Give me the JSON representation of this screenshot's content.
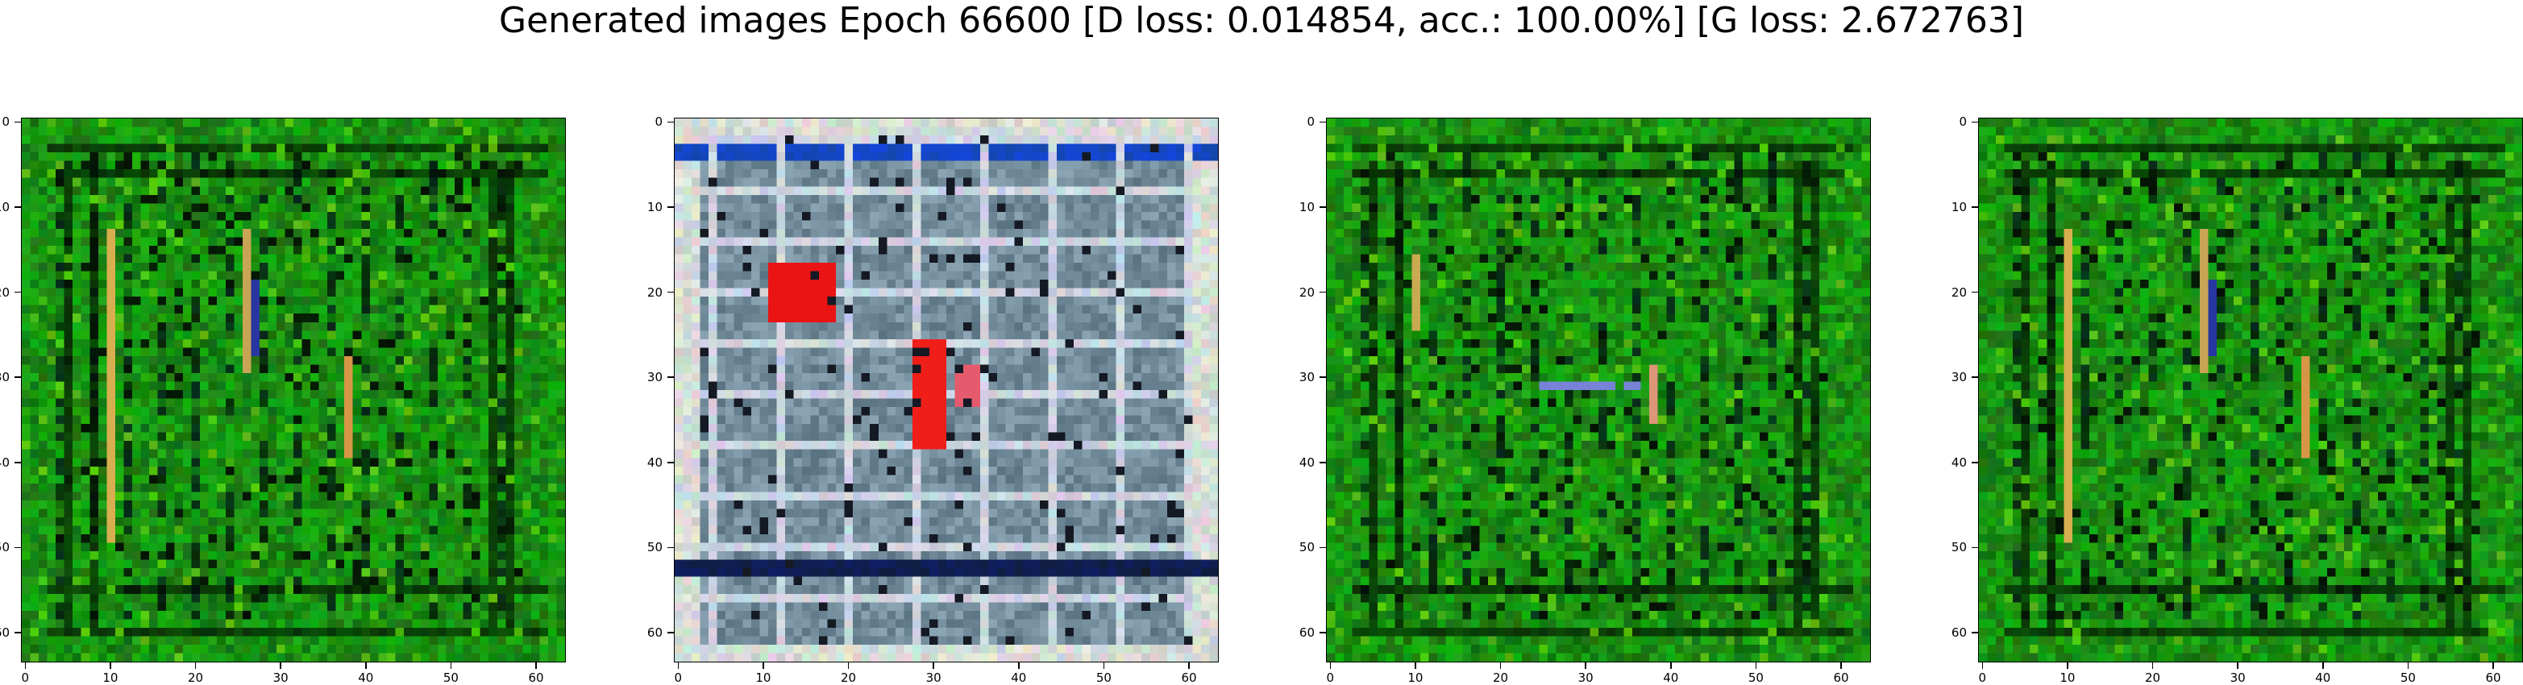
{
  "title": "Generated images Epoch 66600 [D loss: 0.014854, acc.: 100.00%] [G loss: 2.672763]",
  "chart_data": [
    {
      "type": "heatmap",
      "image": "generated-sample-1",
      "dominant_color": "#1f7a1c",
      "x_ticks": [
        0,
        10,
        20,
        30,
        40,
        50,
        60
      ],
      "y_ticks": [
        0,
        10,
        20,
        30,
        40,
        50,
        60
      ],
      "xlim": [
        -0.5,
        63.5
      ],
      "ylim": [
        63.5,
        -0.5
      ]
    },
    {
      "type": "heatmap",
      "image": "generated-sample-2",
      "dominant_color": "#5f7f8f",
      "x_ticks": [
        0,
        10,
        20,
        30,
        40,
        50,
        60
      ],
      "y_ticks": [
        0,
        10,
        20,
        30,
        40,
        50,
        60
      ],
      "xlim": [
        -0.5,
        63.5
      ],
      "ylim": [
        63.5,
        -0.5
      ]
    },
    {
      "type": "heatmap",
      "image": "generated-sample-3",
      "dominant_color": "#1f7a1c",
      "x_ticks": [
        0,
        10,
        20,
        30,
        40,
        50,
        60
      ],
      "y_ticks": [
        0,
        10,
        20,
        30,
        40,
        50,
        60
      ],
      "xlim": [
        -0.5,
        63.5
      ],
      "ylim": [
        63.5,
        -0.5
      ]
    },
    {
      "type": "heatmap",
      "image": "generated-sample-4",
      "dominant_color": "#1f7a1c",
      "x_ticks": [
        0,
        10,
        20,
        30,
        40,
        50,
        60
      ],
      "y_ticks": [
        0,
        10,
        20,
        30,
        40,
        50,
        60
      ],
      "xlim": [
        -0.5,
        63.5
      ],
      "ylim": [
        63.5,
        -0.5
      ]
    }
  ]
}
